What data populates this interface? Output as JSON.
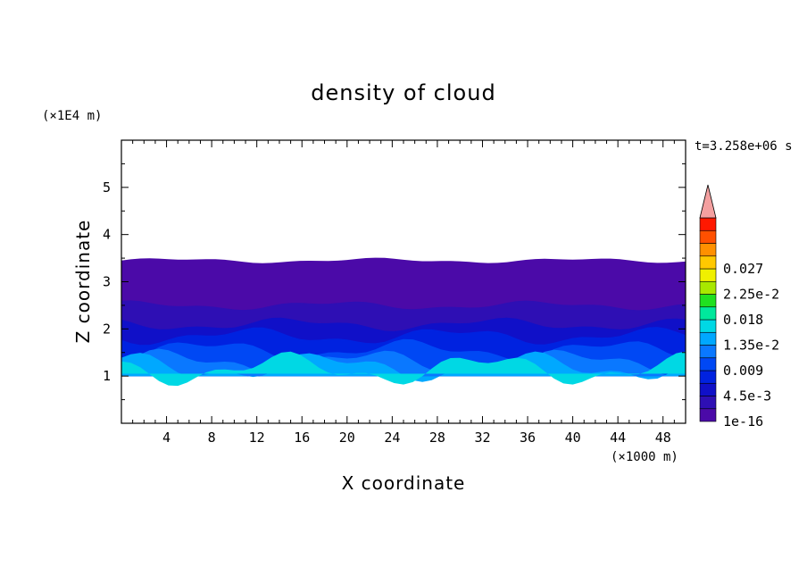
{
  "chart_data": {
    "type": "heatmap",
    "title": "density of cloud",
    "xlabel": "X coordinate",
    "ylabel": "Z coordinate",
    "x_unit": "(×1000 m)",
    "y_unit": "(×1E4 m)",
    "time_label": "t=3.258e+06 s",
    "xlim": [
      0,
      50
    ],
    "ylim": [
      0,
      6
    ],
    "x_ticks": [
      4,
      8,
      12,
      16,
      20,
      24,
      28,
      32,
      36,
      40,
      44,
      48
    ],
    "y_ticks": [
      1,
      2,
      3,
      4,
      5
    ],
    "colorbar": {
      "levels": [
        "1e-16",
        "2.25e-3",
        "4.5e-3",
        "6.75e-3",
        "0.009",
        "1.125e-2",
        "1.35e-2",
        "1.575e-2",
        "0.018",
        "2.025e-2",
        "2.25e-2",
        "2.475e-2",
        "0.027",
        "2.925e-2"
      ],
      "labels": [
        "1e-16",
        "4.5e-3",
        "0.009",
        "1.35e-2",
        "0.018",
        "2.25e-2",
        "0.027"
      ],
      "colors": [
        "#4b0aa8",
        "#2e0fb4",
        "#1010c8",
        "#0022e0",
        "#0048f4",
        "#0a78ff",
        "#00a8ff",
        "#00d8e4",
        "#00e89c",
        "#20e020",
        "#a8e800",
        "#f0f000",
        "#ffc800",
        "#ff9000",
        "#ff5000",
        "#ff1800"
      ],
      "extend_color": "#f4a0a0"
    },
    "layers": [
      {
        "z_base": 1.0,
        "z_top": 3.45,
        "level": 0
      },
      {
        "z_base": 1.0,
        "z_top": 2.5,
        "level": 1
      },
      {
        "z_base": 1.0,
        "z_top": 2.1,
        "level": 2
      },
      {
        "z_base": 1.0,
        "z_top": 1.85,
        "level": 3
      },
      {
        "z_base": 1.0,
        "z_top": 1.55,
        "level": 4
      },
      {
        "z_base": 1.0,
        "z_top": 1.3,
        "level": 5
      },
      {
        "z_base": 1.0,
        "z_top": 1.2,
        "level": 6
      },
      {
        "z_base": 1.05,
        "z_top": 1.15,
        "level": 7
      }
    ]
  }
}
